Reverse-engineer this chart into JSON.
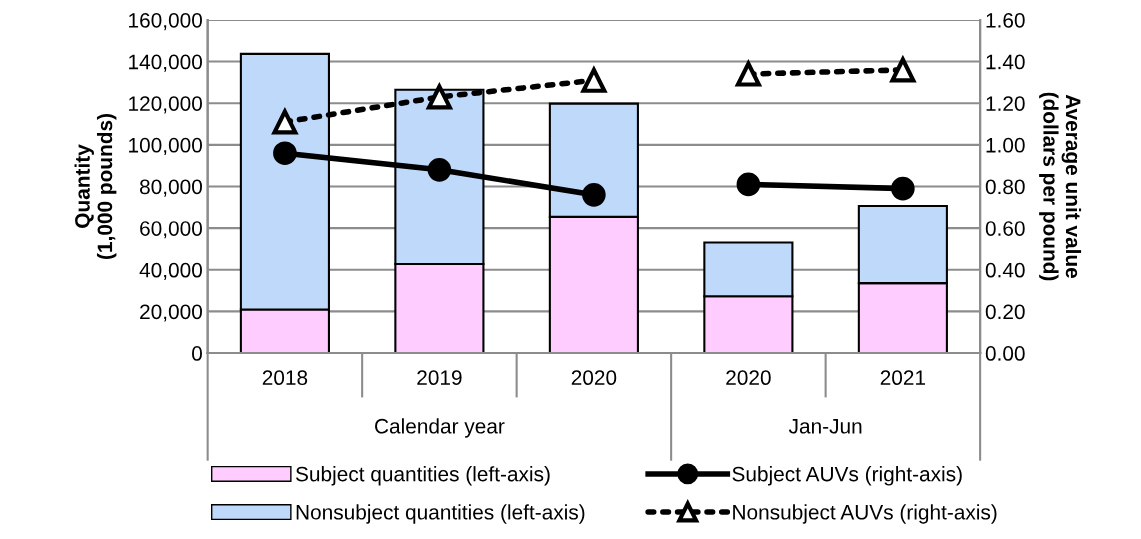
{
  "chart_data": {
    "type": "bar",
    "stacked": true,
    "categories": [
      "2018",
      "2019",
      "2020",
      "2020",
      "2021"
    ],
    "series": [
      {
        "name": "Subject quantities (left-axis)",
        "color": "#ffccff",
        "values": [
          20900,
          42800,
          65400,
          27300,
          33600
        ]
      },
      {
        "name": "Nonsubject quantities (left-axis)",
        "color": "#bfd9fb",
        "values": [
          122800,
          83700,
          54400,
          25800,
          37000
        ]
      },
      {
        "name": "Subject AUVs (right-axis)",
        "type": "line",
        "axis": "y2",
        "color": "#000000",
        "marker": "circle",
        "line_style": "solid",
        "values": [
          0.96,
          0.88,
          0.76,
          null,
          null
        ]
      },
      {
        "type": "line",
        "axis": "y2",
        "color": "#000000",
        "marker": "circle",
        "line_style": "solid",
        "values": [
          null,
          null,
          null,
          0.81,
          0.79
        ]
      },
      {
        "name": "Nonsubject AUVs (right-axis)",
        "type": "line",
        "axis": "y2",
        "color": "#000000",
        "marker": "triangle",
        "line_style": "dotted",
        "values": [
          1.11,
          1.23,
          1.31,
          null,
          null
        ]
      },
      {
        "type": "line",
        "axis": "y2",
        "color": "#000000",
        "marker": "triangle",
        "line_style": "dotted",
        "values": [
          null,
          null,
          null,
          1.34,
          1.36
        ]
      }
    ],
    "ylabel": "Quantity\n(1,000 pounds)",
    "y2label": "Average unit value\n(dollars per pound)",
    "ylim": [
      0,
      160000
    ],
    "yticks": [
      {
        "value": 0,
        "label": "0"
      },
      {
        "value": 20000,
        "label": "20,000"
      },
      {
        "value": 40000,
        "label": "40,000"
      },
      {
        "value": 60000,
        "label": "60,000"
      },
      {
        "value": 80000,
        "label": "80,000"
      },
      {
        "value": 100000,
        "label": "100,000"
      },
      {
        "value": 120000,
        "label": "120,000"
      },
      {
        "value": 140000,
        "label": "140,000"
      },
      {
        "value": 160000,
        "label": "160,000"
      }
    ],
    "y2lim": [
      0,
      1.6
    ],
    "y2ticks": [
      {
        "value": 0,
        "label": "0.00"
      },
      {
        "value": 0.2,
        "label": "0.20"
      },
      {
        "value": 0.4,
        "label": "0.40"
      },
      {
        "value": 0.6,
        "label": "0.60"
      },
      {
        "value": 0.8,
        "label": "0.80"
      },
      {
        "value": 1.0,
        "label": "1.00"
      },
      {
        "value": 1.2,
        "label": "1.20"
      },
      {
        "value": 1.4,
        "label": "1.40"
      },
      {
        "value": 1.6,
        "label": "1.60"
      }
    ],
    "annotations": [
      "Calendar year",
      "Jan-Jun"
    ],
    "grid": "y",
    "legend": "bottom"
  }
}
